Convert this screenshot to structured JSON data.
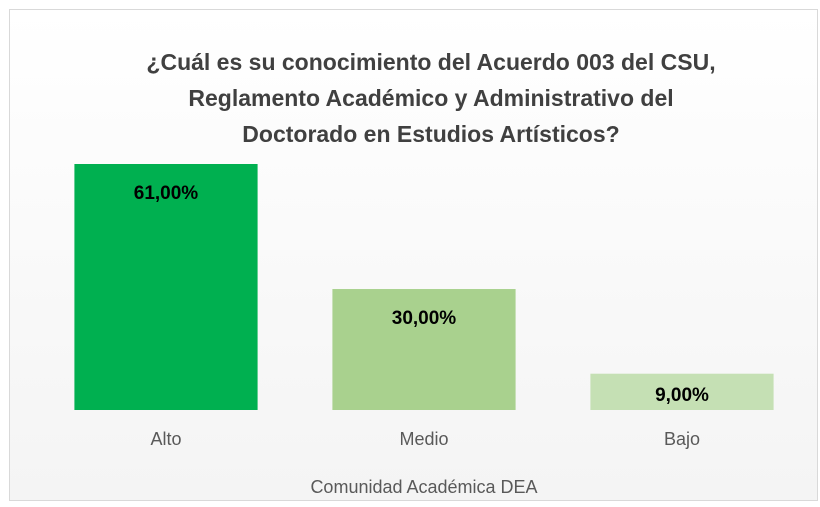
{
  "chart_data": {
    "type": "bar",
    "title": [
      "¿Cuál es su conocimiento del Acuerdo 003 del CSU,",
      "Reglamento Académico y Administrativo del",
      "Doctorado en Estudios Artísticos?"
    ],
    "categories": [
      "Alto",
      "Medio",
      "Bajo"
    ],
    "values": [
      61,
      30,
      9
    ],
    "value_labels": [
      "61,00%",
      "30,00%",
      "9,00%"
    ],
    "colors": [
      "#00B050",
      "#A9D18E",
      "#C5E0B4"
    ],
    "xlabel": "Comunidad Académica DEA"
  }
}
